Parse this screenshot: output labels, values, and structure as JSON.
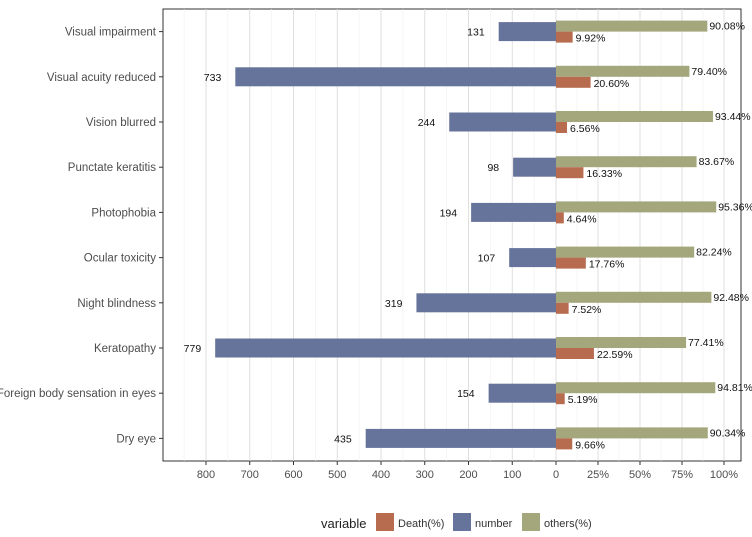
{
  "chart_data": {
    "type": "bar",
    "orientation": "horizontal",
    "categories": [
      "Visual impairment",
      "Visual acuity reduced",
      "Vision blurred",
      "Punctate keratitis",
      "Photophobia",
      "Ocular toxicity",
      "Night blindness",
      "Keratopathy",
      "Foreign body sensation in eyes",
      "Dry eye"
    ],
    "series": [
      {
        "name": "number",
        "color": "#66739a",
        "values": [
          131,
          733,
          244,
          98,
          194,
          107,
          319,
          779,
          154,
          435
        ],
        "labels": [
          "131",
          "733",
          "244",
          "98",
          "194",
          "107",
          "319",
          "779",
          "154",
          "435"
        ]
      },
      {
        "name": "others(%)",
        "color": "#a4a67c",
        "values": [
          90.08,
          79.4,
          93.44,
          83.67,
          95.36,
          82.24,
          92.48,
          77.41,
          94.81,
          90.34
        ],
        "labels": [
          "90.08%",
          "79.40%",
          "93.44%",
          "83.67%",
          "95.36%",
          "82.24%",
          "92.48%",
          "77.41%",
          "94.81%",
          "90.34%"
        ]
      },
      {
        "name": "Death(%)",
        "color": "#b76c50",
        "values": [
          9.92,
          20.6,
          6.56,
          16.33,
          4.64,
          17.76,
          7.52,
          22.59,
          5.19,
          9.66
        ],
        "labels": [
          "9.92%",
          "20.60%",
          "6.56%",
          "16.33%",
          "4.64%",
          "17.76%",
          "7.52%",
          "22.59%",
          "5.19%",
          "9.66%"
        ]
      }
    ],
    "left_axis": {
      "range": [
        0,
        900
      ],
      "ticks": [
        800,
        700,
        600,
        500,
        400,
        300,
        200,
        100,
        0
      ],
      "tick_labels": [
        "800",
        "700",
        "600",
        "500",
        "400",
        "300",
        "200",
        "100",
        "0"
      ]
    },
    "right_axis": {
      "range": [
        0,
        100
      ],
      "ticks": [
        25,
        50,
        75,
        100
      ],
      "tick_labels": [
        "25%",
        "50%",
        "75%",
        "100%"
      ]
    },
    "grid": true,
    "legend": {
      "title": "variable",
      "placement": "bottom",
      "items": [
        {
          "label": "Death(%)",
          "color": "#b76c50"
        },
        {
          "label": "number",
          "color": "#66739a"
        },
        {
          "label": "others(%)",
          "color": "#a4a67c"
        }
      ]
    }
  }
}
